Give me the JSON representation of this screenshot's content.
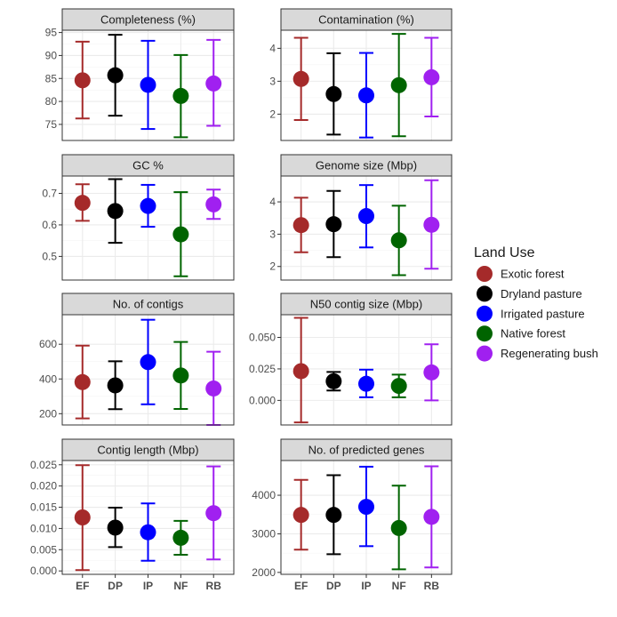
{
  "colors": {
    "EF": "#a52a2a",
    "DP": "#000000",
    "IP": "#0000ff",
    "NF": "#006400",
    "RB": "#a020f0",
    "strip_bg": "#d9d9d9",
    "grid": "#ebebeb"
  },
  "chart_data": {
    "type": "scatter",
    "subtype": "point-with-errorbars, faceted",
    "categories": [
      "EF",
      "DP",
      "IP",
      "NF",
      "RB"
    ],
    "legend": {
      "title": "Land Use",
      "position": "right",
      "entries": [
        {
          "key": "EF",
          "label": "Exotic forest"
        },
        {
          "key": "DP",
          "label": "Dryland pasture"
        },
        {
          "key": "IP",
          "label": "Irrigated pasture"
        },
        {
          "key": "NF",
          "label": "Native forest"
        },
        {
          "key": "RB",
          "label": "Regenerating bush"
        }
      ]
    },
    "panels": [
      {
        "title": "Completeness (%)",
        "ylim": [
          71.5,
          95.5
        ],
        "yticks": [
          75,
          80,
          85,
          90,
          95
        ],
        "ytick_labels": [
          "75",
          "80",
          "85",
          "90",
          "95"
        ],
        "mean": [
          84.6,
          85.7,
          83.6,
          81.2,
          83.9
        ],
        "low": [
          76.3,
          76.9,
          74.0,
          72.2,
          74.7
        ],
        "high": [
          93.0,
          94.5,
          93.2,
          90.1,
          93.4
        ]
      },
      {
        "title": "Contamination (%)",
        "ylim": [
          1.2,
          4.55
        ],
        "yticks": [
          2,
          3,
          4
        ],
        "ytick_labels": [
          "2",
          "3",
          "4"
        ],
        "mean": [
          3.07,
          2.61,
          2.57,
          2.88,
          3.12
        ],
        "low": [
          1.82,
          1.38,
          1.29,
          1.33,
          1.93
        ],
        "high": [
          4.32,
          3.85,
          3.86,
          4.44,
          4.32
        ]
      },
      {
        "title": "GC %",
        "ylim": [
          0.425,
          0.755
        ],
        "yticks": [
          0.5,
          0.6,
          0.7
        ],
        "ytick_labels": [
          "0.5",
          "0.6",
          "0.7"
        ],
        "mean": [
          0.67,
          0.644,
          0.66,
          0.57,
          0.665
        ],
        "low": [
          0.613,
          0.543,
          0.594,
          0.437,
          0.619
        ],
        "high": [
          0.729,
          0.745,
          0.727,
          0.704,
          0.712
        ]
      },
      {
        "title": "Genome size (Mbp)",
        "ylim": [
          1.58,
          4.8
        ],
        "yticks": [
          2,
          3,
          4
        ],
        "ytick_labels": [
          "2",
          "3",
          "4"
        ],
        "mean": [
          3.28,
          3.31,
          3.56,
          2.81,
          3.29
        ],
        "low": [
          2.44,
          2.29,
          2.59,
          1.73,
          1.93
        ],
        "high": [
          4.13,
          4.34,
          4.52,
          3.88,
          4.67
        ]
      },
      {
        "title": "No. of contigs",
        "ylim": [
          135,
          770
        ],
        "yticks": [
          200,
          400,
          600
        ],
        "ytick_labels": [
          "200",
          "400",
          "600"
        ],
        "mean": [
          382,
          363,
          497,
          420,
          345
        ],
        "low": [
          173,
          226,
          254,
          227,
          135
        ],
        "high": [
          592,
          502,
          741,
          613,
          557
        ]
      },
      {
        "title": "N50 contig size (Mbp)",
        "ylim": [
          -0.0195,
          0.068
        ],
        "yticks": [
          0.0,
          0.025,
          0.05
        ],
        "ytick_labels": [
          "0.000",
          "0.025",
          "0.050"
        ],
        "mean": [
          0.0232,
          0.0152,
          0.0132,
          0.0115,
          0.0222
        ],
        "low": [
          -0.0175,
          0.0078,
          0.0025,
          0.0025,
          0.0
        ],
        "high": [
          0.0655,
          0.0226,
          0.0244,
          0.0205,
          0.0445
        ]
      },
      {
        "title": "Contig length (Mbp)",
        "ylim": [
          -0.0008,
          0.026
        ],
        "yticks": [
          0.0,
          0.005,
          0.01,
          0.015,
          0.02,
          0.025
        ],
        "ytick_labels": [
          "0.000",
          "0.005",
          "0.010",
          "0.015",
          "0.020",
          "0.025"
        ],
        "mean": [
          0.0126,
          0.0102,
          0.0091,
          0.0078,
          0.0136
        ],
        "low": [
          0.0002,
          0.0056,
          0.0024,
          0.0038,
          0.0027
        ],
        "high": [
          0.0249,
          0.0149,
          0.0159,
          0.0118,
          0.0246
        ]
      },
      {
        "title": "No. of predicted genes",
        "ylim": [
          1950,
          4900
        ],
        "yticks": [
          2000,
          3000,
          4000
        ],
        "ytick_labels": [
          "2000",
          "3000",
          "4000"
        ],
        "mean": [
          3490,
          3490,
          3700,
          3150,
          3440
        ],
        "low": [
          2590,
          2470,
          2680,
          2080,
          2130
        ],
        "high": [
          4400,
          4520,
          4740,
          4250,
          4750
        ]
      }
    ]
  }
}
